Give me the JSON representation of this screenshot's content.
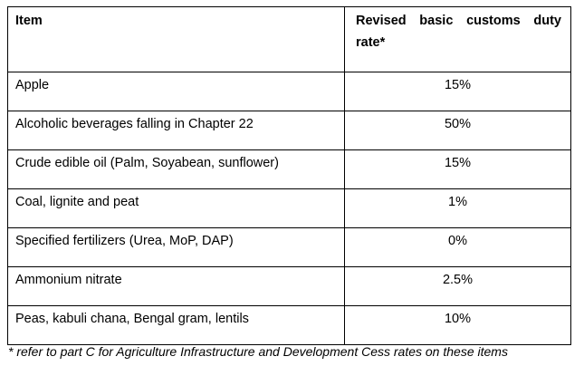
{
  "table": {
    "headers": {
      "item": "Item",
      "rate": "Revised basic customs duty rate*"
    },
    "rows": [
      {
        "item": "Apple",
        "rate": "15%"
      },
      {
        "item": "Alcoholic beverages falling in Chapter 22",
        "rate": "50%"
      },
      {
        "item": "Crude edible oil (Palm, Soyabean, sunflower)",
        "rate": "15%"
      },
      {
        "item": "Coal, lignite and peat",
        "rate": "1%"
      },
      {
        "item": "Specified fertilizers (Urea, MoP, DAP)",
        "rate": "0%"
      },
      {
        "item": "Ammonium nitrate",
        "rate": "2.5%"
      },
      {
        "item": "Peas, kabuli chana, Bengal gram, lentils",
        "rate": "10%"
      }
    ]
  },
  "footnote": "* refer to part C for Agriculture Infrastructure and Development Cess rates on these items"
}
